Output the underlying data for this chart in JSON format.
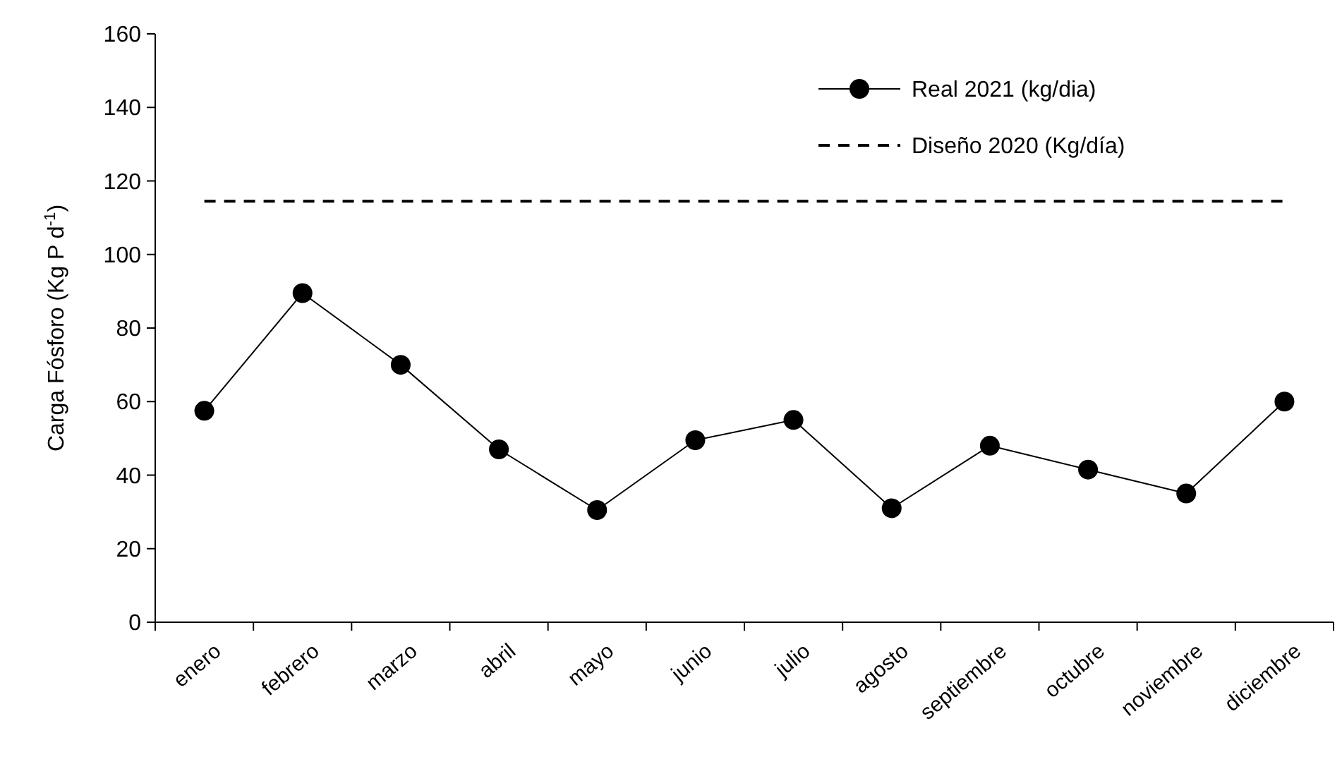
{
  "chart_data": {
    "type": "line",
    "ylabel": "Carga Fósforo (Kg P d$^{-1}$)",
    "categories": [
      "enero",
      "febrero",
      "marzo",
      "abril",
      "mayo",
      "junio",
      "julio",
      "agosto",
      "septiembre",
      "octubre",
      "noviembre",
      "diciembre"
    ],
    "series": [
      {
        "name": "Real 2021 (kg/dia)",
        "color": "#000000",
        "marker": "circle",
        "line_style": "solid",
        "values": [
          57.5,
          89.5,
          70,
          47,
          30.5,
          49.5,
          55,
          31,
          48,
          41.5,
          35,
          60
        ]
      },
      {
        "name": "Diseño 2020 (Kg/día)",
        "color": "#000000",
        "marker": "none",
        "line_style": "dashed",
        "values": [
          114.5,
          114.5,
          114.5,
          114.5,
          114.5,
          114.5,
          114.5,
          114.5,
          114.5,
          114.5,
          114.5,
          114.5
        ]
      }
    ],
    "ylim": [
      0,
      160
    ],
    "yticks": [
      0,
      20,
      40,
      60,
      80,
      100,
      120,
      140,
      160
    ],
    "grid": false,
    "legend": "top right"
  }
}
